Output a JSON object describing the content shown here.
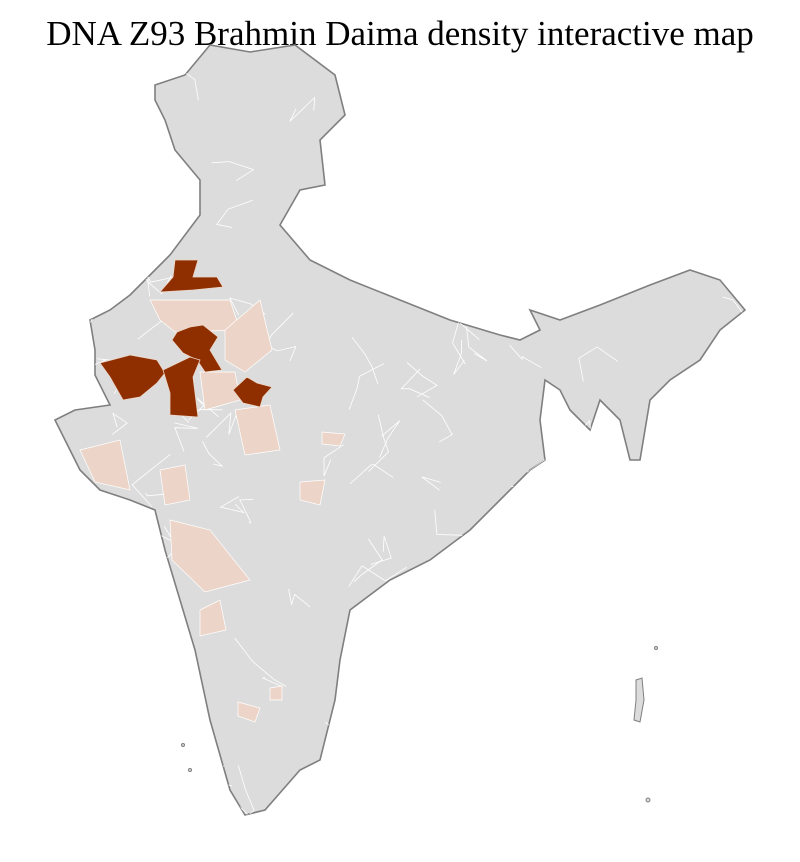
{
  "title": "DNA Z93 Brahmin Daima density interactive map",
  "colors": {
    "background": "#ffffff",
    "no_data": "#dcdcdc",
    "low_density": "#ecd5c8",
    "high_density": "#8f2f00",
    "state_border": "#7f7f7f",
    "district_border": "#ffffff"
  }
}
